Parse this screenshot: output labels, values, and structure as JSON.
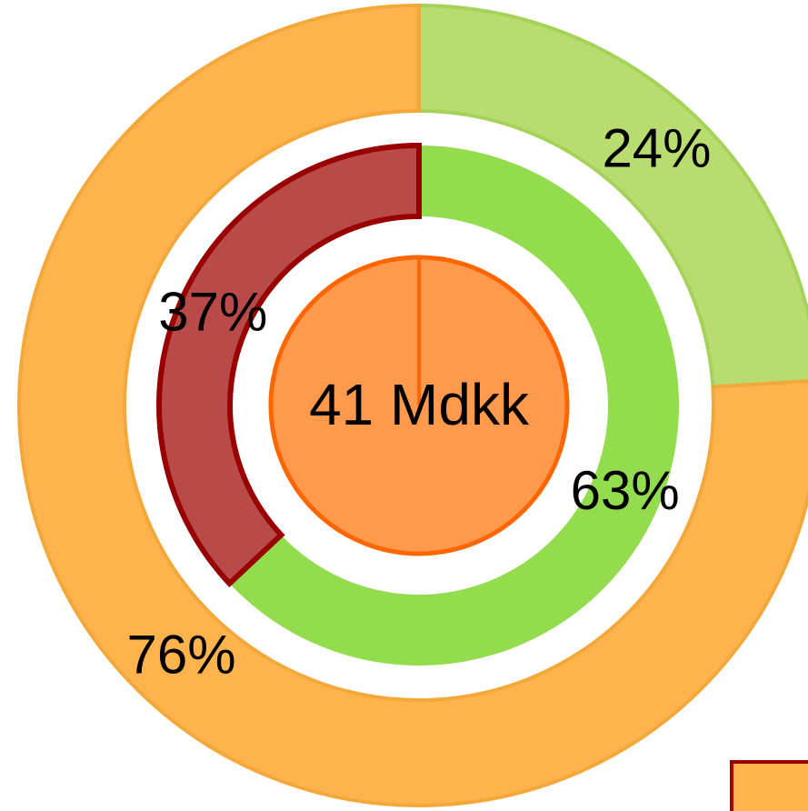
{
  "chart_data": {
    "type": "donut",
    "center_label": "41 Mdkk",
    "center_color": "#ff9a4d",
    "rings": [
      {
        "values": [
          24,
          76
        ],
        "value_labels": [
          "24%",
          "76%"
        ],
        "colors": [
          "#b8dc70",
          "#ffb34d"
        ]
      },
      {
        "values": [
          63,
          37
        ],
        "value_labels": [
          "63%",
          "37%"
        ],
        "colors": [
          "#92dc4d",
          "#b94a4a"
        ]
      }
    ]
  }
}
